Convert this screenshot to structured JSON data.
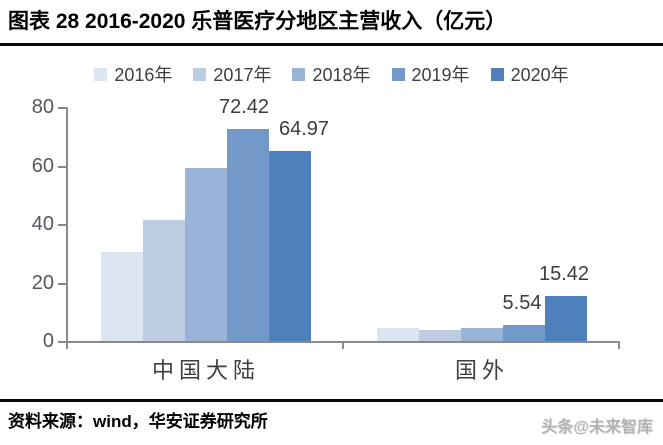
{
  "header": {
    "title": "图表 28 2016-2020 乐普医疗分地区主营收入（亿元）"
  },
  "chart_data": {
    "type": "bar",
    "title": "2016-2020 乐普医疗分地区主营收入（亿元）",
    "unit": "亿元",
    "categories": [
      "中国大陆",
      "国外"
    ],
    "series": [
      {
        "name": "2016年",
        "color": "#dde5f0",
        "values": [
          30.4,
          4.3
        ]
      },
      {
        "name": "2017年",
        "color": "#bccde3",
        "values": [
          41.5,
          3.9
        ]
      },
      {
        "name": "2018年",
        "color": "#99b3d7",
        "values": [
          59.0,
          4.5
        ]
      },
      {
        "name": "2019年",
        "color": "#7399c9",
        "values": [
          72.42,
          5.54
        ]
      },
      {
        "name": "2020年",
        "color": "#4e81bb",
        "values": [
          64.97,
          15.42
        ]
      }
    ],
    "data_labels": [
      {
        "series": "2019年",
        "category": "中国大陆",
        "text": "72.42"
      },
      {
        "series": "2020年",
        "category": "中国大陆",
        "text": "64.97"
      },
      {
        "series": "2019年",
        "category": "国外",
        "text": "5.54"
      },
      {
        "series": "2020年",
        "category": "国外",
        "text": "15.42"
      }
    ],
    "ylim": [
      0,
      80
    ],
    "yticks": [
      0,
      20,
      40,
      60,
      80
    ],
    "xlabel": "",
    "ylabel": "",
    "grid": false,
    "legend_position": "top",
    "axis_color": "#8a8a8a"
  },
  "footer": {
    "source": "资料来源：wind，华安证券研究所",
    "watermark": "头条@未来智库"
  }
}
